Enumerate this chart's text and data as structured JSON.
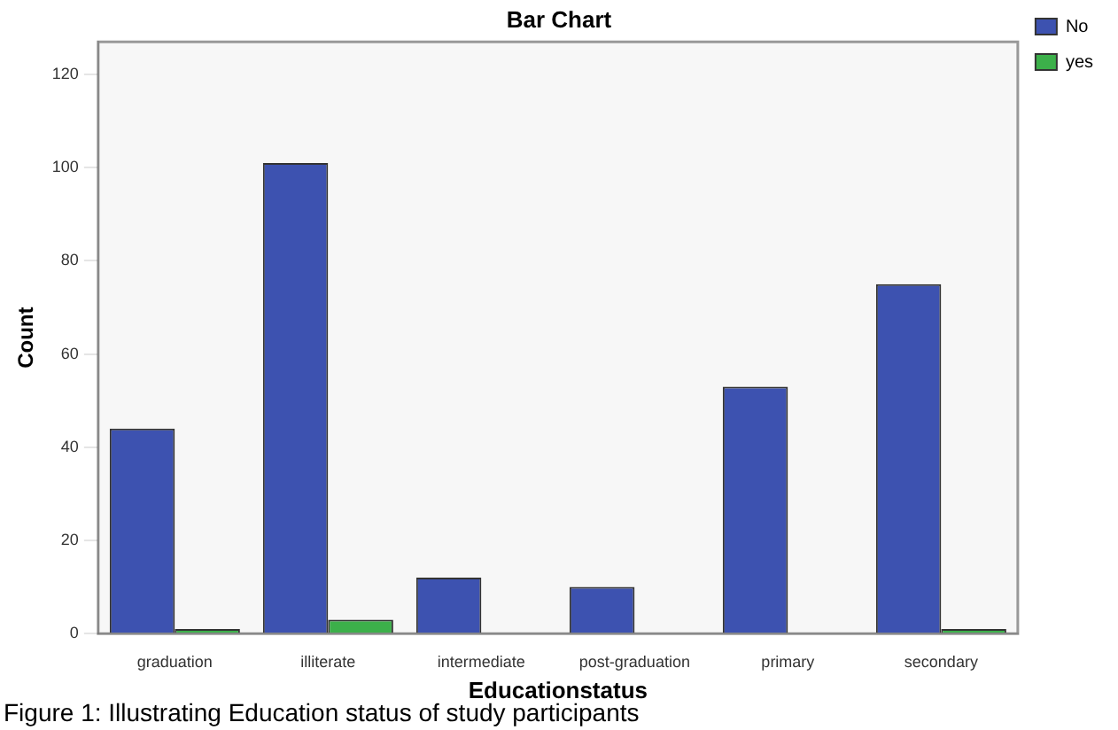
{
  "chart_data": {
    "type": "bar",
    "title": "Bar Chart",
    "xlabel": "Educationstatus",
    "ylabel": "Count",
    "categories": [
      "graduation",
      "illiterate",
      "intermediate",
      "post-graduation",
      "primary",
      "secondary"
    ],
    "series": [
      {
        "name": "No",
        "color": "#3d52b0",
        "values": [
          44,
          101,
          12,
          10,
          53,
          75
        ]
      },
      {
        "name": "yes",
        "color": "#3cb04a",
        "values": [
          1,
          3,
          0,
          0,
          0,
          1
        ]
      }
    ],
    "ylim": [
      0,
      127
    ],
    "yticks": [
      0,
      20,
      40,
      60,
      80,
      100,
      120
    ],
    "grid": false,
    "legend": "top right",
    "annotations": [
      "Figure 1: Illustrating Education status of study participants"
    ]
  }
}
